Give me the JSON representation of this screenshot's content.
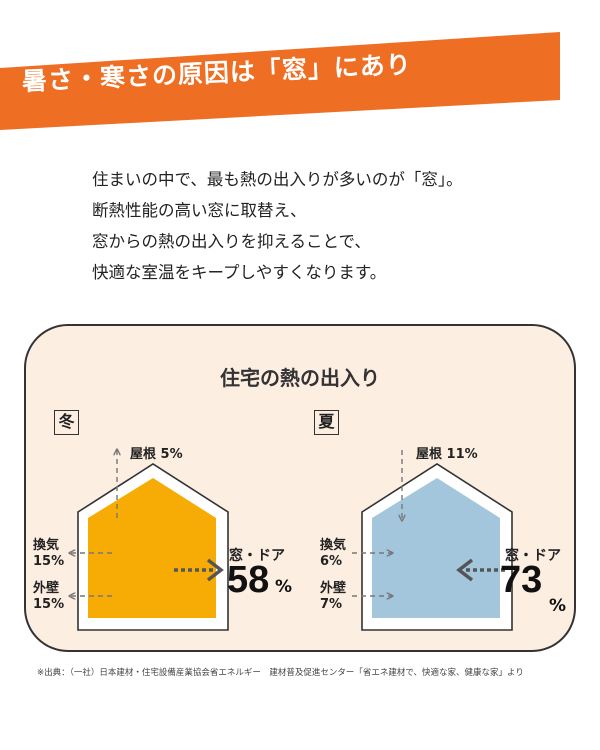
{
  "banner": {
    "title": "暑さ・寒さの原因は「窓」にあり",
    "color": "#ee6e24"
  },
  "intro": [
    "住まいの中で、最も熱の出入りが多いのが「窓」。",
    "断熱性能の高い窓に取替え、",
    "窓からの熱の出入りを抑えることで、",
    "快適な室温をキープしやすくなります。"
  ],
  "panel": {
    "title": "住宅の熱の出入り",
    "background": "#fdeee2"
  },
  "winter": {
    "season": "冬",
    "house_color": "#f7ab05",
    "roof_label": "屋根 5%",
    "vent_label": "換気",
    "vent_value": "15%",
    "wall_label": "外壁",
    "wall_value": "15%",
    "window_label": "窓・ドア",
    "window_value": "58",
    "window_unit": "%"
  },
  "summer": {
    "season": "夏",
    "house_color": "#a3c6dc",
    "roof_label": "屋根 11%",
    "vent_label": "換気",
    "vent_value": "6%",
    "wall_label": "外壁",
    "wall_value": "7%",
    "window_label": "窓・ドア",
    "window_value": "73",
    "window_unit": "%"
  },
  "footnote": "※出典：（一社）日本建材・住宅設備産業協会省エネルギー　建材普及促進センター「省エネ建材で、快適な家、健康な家」より"
}
